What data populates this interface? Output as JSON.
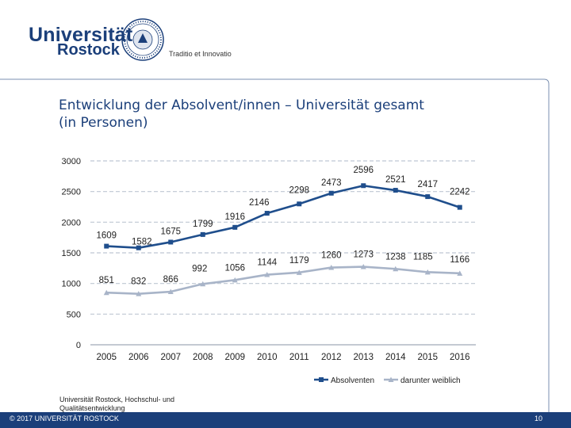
{
  "header": {
    "logo_line1": "Universität",
    "logo_line2": "Rostock",
    "motto": "Traditio et Innovatio"
  },
  "colors": {
    "brand": "#1b3f7a",
    "series_primary": "#1f4e8c",
    "series_secondary": "#a8b4c8",
    "grid": "#bfc7d3"
  },
  "chart_data": {
    "type": "line",
    "title": "Entwicklung der Absolvent/innen – Universität gesamt (in Personen)",
    "title_line1": "Entwicklung der Absolvent/innen – Universität gesamt",
    "title_line2": "(in Personen)",
    "xlabel": "",
    "ylabel": "",
    "ylim": [
      0,
      3000
    ],
    "yticks": [
      "0",
      "500",
      "1000",
      "1500",
      "2000",
      "2500",
      "3000"
    ],
    "grid": true,
    "legend_position": "bottom",
    "categories": [
      "2005",
      "2006",
      "2007",
      "2008",
      "2009",
      "2010",
      "2011",
      "2012",
      "2013",
      "2014",
      "2015",
      "2016"
    ],
    "series": [
      {
        "name": "Absolventen",
        "values": [
          1609,
          1582,
          1675,
          1799,
          1916,
          2146,
          2298,
          2473,
          2596,
          2521,
          2417,
          2242
        ],
        "labels": [
          "1609",
          "1582",
          "1675",
          "1799",
          "1916",
          "2146",
          "2298",
          "2473",
          "2596",
          "2521",
          "2417",
          "2242"
        ]
      },
      {
        "name": "darunter weiblich",
        "values": [
          851,
          832,
          866,
          992,
          1056,
          1144,
          1179,
          1260,
          1273,
          1238,
          1185,
          1166
        ],
        "labels": [
          "851",
          "832",
          "866",
          "992",
          "1056",
          "1144",
          "1179",
          "1260",
          "1273",
          "1238",
          "1185",
          "1166"
        ]
      }
    ]
  },
  "footer": {
    "source": "Universität Rostock, Hochschul- und Qualitätsentwicklung",
    "copyright": "© 2017 UNIVERSITÄT ROSTOCK",
    "page_number": "10"
  }
}
